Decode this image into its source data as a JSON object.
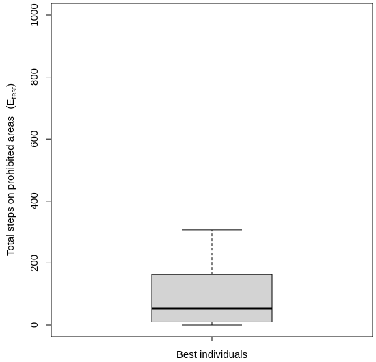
{
  "chart_data": {
    "type": "boxplot",
    "title": "",
    "xlabel": "Best individuals",
    "ylabel": {
      "main": "Total steps on prohibited areas",
      "symbol": "E",
      "subscript": "test"
    },
    "ylim": [
      0,
      1000
    ],
    "yticks": [
      0,
      200,
      400,
      600,
      800,
      1000
    ],
    "grid": false,
    "box": {
      "min": 0,
      "q1": 10,
      "median": 53,
      "q3": 163,
      "max": 307,
      "fill": "#d3d3d3"
    }
  }
}
